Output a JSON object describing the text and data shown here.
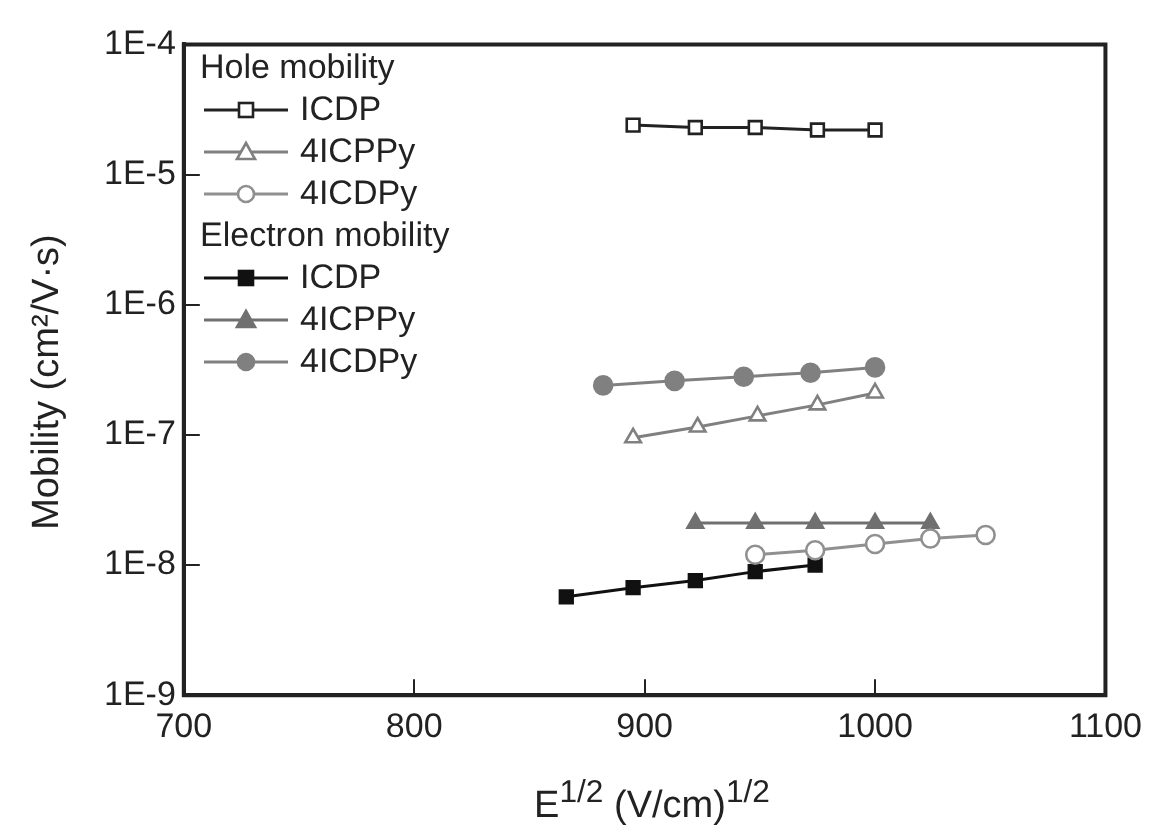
{
  "chart_data": {
    "type": "line",
    "xlabel": "E$^{1/2}$ (V/cm)$^{1/2}$",
    "ylabel": "Mobility (cm²/V·s)",
    "legend_title": "Hole mobility",
    "annotations": [
      "Electron mobility"
    ],
    "log": "y",
    "xlim": [
      700,
      1100
    ],
    "xticks": [
      700,
      800,
      900,
      1000,
      1100
    ],
    "ylim": [
      1e-09,
      0.0001
    ],
    "yticks": [
      {
        "value": 1e-09,
        "label": "1E-9"
      },
      {
        "value": 1e-08,
        "label": "1E-8"
      },
      {
        "value": 1e-07,
        "label": "1E-7"
      },
      {
        "value": 1e-06,
        "label": "1E-6"
      },
      {
        "value": 1e-05,
        "label": "1E-5"
      },
      {
        "value": 0.0001,
        "label": "1E-4"
      }
    ],
    "grid": false,
    "legend": "top left",
    "series": [
      {
        "name": "ICDP",
        "color": "#222222",
        "marker": "square",
        "x": [
          895,
          922,
          948,
          975,
          1000
        ],
        "values": [
          2.4e-05,
          2.3e-05,
          2.3e-05,
          2.2e-05,
          2.2e-05
        ]
      },
      {
        "name": "4ICPPy",
        "color": "#808080",
        "marker": "triangle",
        "x": [
          895,
          923,
          949,
          975,
          1000
        ],
        "values": [
          9.5e-08,
          1.15e-07,
          1.4e-07,
          1.7e-07,
          2.1e-07
        ]
      },
      {
        "name": "4ICDPy",
        "color": "#909090",
        "marker": "circle",
        "x": [
          948,
          974,
          1000,
          1024,
          1048
        ],
        "values": [
          1.2e-08,
          1.3e-08,
          1.45e-08,
          1.6e-08,
          1.7e-08
        ]
      },
      {
        "name": "ICDP",
        "color": "#111111",
        "marker": "square",
        "x": [
          866,
          895,
          922,
          948,
          974
        ],
        "values": [
          5.7e-09,
          6.7e-09,
          7.6e-09,
          8.9e-09,
          1e-08
        ]
      },
      {
        "name": "4ICPPy",
        "color": "#707070",
        "marker": "triangle",
        "x": [
          922,
          948,
          974,
          1000,
          1024
        ],
        "values": [
          2.1e-08,
          2.1e-08,
          2.1e-08,
          2.1e-08,
          2.1e-08
        ]
      },
      {
        "name": "4ICDPy",
        "color": "#808080",
        "marker": "circle",
        "x": [
          882,
          913,
          943,
          972,
          1000
        ],
        "values": [
          2.4e-07,
          2.6e-07,
          2.8e-07,
          3e-07,
          3.3e-07
        ]
      }
    ]
  }
}
